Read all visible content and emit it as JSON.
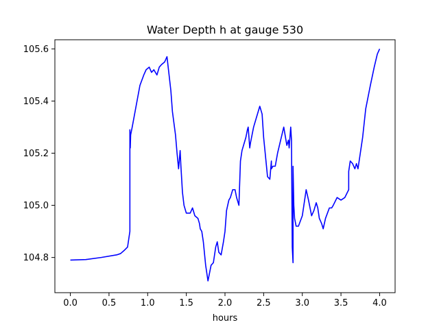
{
  "chart_data": {
    "type": "line",
    "title": "Water Depth h at gauge 530",
    "xlabel": "hours",
    "ylabel": "",
    "xlim": [
      -0.2,
      4.2
    ],
    "ylim": [
      104.665,
      105.635
    ],
    "x_ticks": [
      0.0,
      0.5,
      1.0,
      1.5,
      2.0,
      2.5,
      3.0,
      3.5,
      4.0
    ],
    "x_tick_labels": [
      "0.0",
      "0.5",
      "1.0",
      "1.5",
      "2.0",
      "2.5",
      "3.0",
      "3.5",
      "4.0"
    ],
    "y_ticks": [
      104.8,
      105.0,
      105.2,
      105.4,
      105.6
    ],
    "y_tick_labels": [
      "104.8",
      "105.0",
      "105.2",
      "105.4",
      "105.6"
    ],
    "grid": false,
    "legend": "none",
    "line_color": "#0000ff",
    "series": [
      {
        "x": [
          0.0,
          0.2,
          0.4,
          0.6,
          0.65,
          0.7,
          0.74,
          0.77,
          0.77,
          0.775,
          0.78,
          0.8,
          0.85,
          0.9,
          0.95,
          0.98,
          1.02,
          1.05,
          1.08,
          1.12,
          1.15,
          1.18,
          1.22,
          1.25,
          1.3,
          1.32,
          1.36,
          1.38,
          1.4,
          1.42,
          1.43,
          1.44,
          1.45,
          1.47,
          1.5,
          1.55,
          1.58,
          1.61,
          1.65,
          1.67,
          1.68,
          1.7,
          1.72,
          1.75,
          1.78,
          1.82,
          1.85,
          1.88,
          1.9,
          1.92,
          1.95,
          1.98,
          2.0,
          2.02,
          2.05,
          2.07,
          2.1,
          2.13,
          2.15,
          2.18,
          2.2,
          2.22,
          2.25,
          2.27,
          2.29,
          2.3,
          2.32,
          2.33,
          2.35,
          2.37,
          2.4,
          2.45,
          2.48,
          2.5,
          2.52,
          2.55,
          2.58,
          2.6,
          2.6,
          2.62,
          2.65,
          2.68,
          2.72,
          2.76,
          2.8,
          2.82,
          2.83,
          2.85,
          2.86,
          2.87,
          2.88,
          2.88,
          2.89,
          2.9,
          2.92,
          2.95,
          3.0,
          3.05,
          3.08,
          3.12,
          3.15,
          3.18,
          3.2,
          3.22,
          3.25,
          3.27,
          3.3,
          3.35,
          3.38,
          3.4,
          3.45,
          3.5,
          3.55,
          3.6,
          3.6,
          3.62,
          3.65,
          3.68,
          3.7,
          3.72,
          3.75,
          3.78,
          3.82,
          3.88,
          3.93,
          3.97,
          4.0
        ],
        "y": [
          104.79,
          104.792,
          104.8,
          104.81,
          104.815,
          104.828,
          104.84,
          104.9,
          105.29,
          105.22,
          105.27,
          105.3,
          105.38,
          105.46,
          105.5,
          105.52,
          105.53,
          105.51,
          105.52,
          105.5,
          105.53,
          105.54,
          105.55,
          105.57,
          105.44,
          105.36,
          105.27,
          105.2,
          105.14,
          105.21,
          105.15,
          105.1,
          105.05,
          105.0,
          104.97,
          104.97,
          104.99,
          104.96,
          104.95,
          104.93,
          104.91,
          104.9,
          104.86,
          104.77,
          104.71,
          104.77,
          104.78,
          104.84,
          104.86,
          104.82,
          104.81,
          104.86,
          104.9,
          104.98,
          105.02,
          105.03,
          105.06,
          105.06,
          105.03,
          105.0,
          105.17,
          105.21,
          105.24,
          105.26,
          105.29,
          105.3,
          105.22,
          105.24,
          105.27,
          105.3,
          105.33,
          105.38,
          105.35,
          105.26,
          105.2,
          105.11,
          105.1,
          105.17,
          105.14,
          105.15,
          105.15,
          105.2,
          105.25,
          105.3,
          105.23,
          105.25,
          105.22,
          105.3,
          105.25,
          104.84,
          104.78,
          105.15,
          105.0,
          104.95,
          104.92,
          104.92,
          104.96,
          105.06,
          105.02,
          104.96,
          104.98,
          105.01,
          104.99,
          104.95,
          104.93,
          104.91,
          104.95,
          104.99,
          104.99,
          105.0,
          105.03,
          105.02,
          105.03,
          105.06,
          105.13,
          105.17,
          105.16,
          105.14,
          105.16,
          105.14,
          105.2,
          105.26,
          105.37,
          105.46,
          105.53,
          105.58,
          105.6
        ]
      }
    ]
  }
}
